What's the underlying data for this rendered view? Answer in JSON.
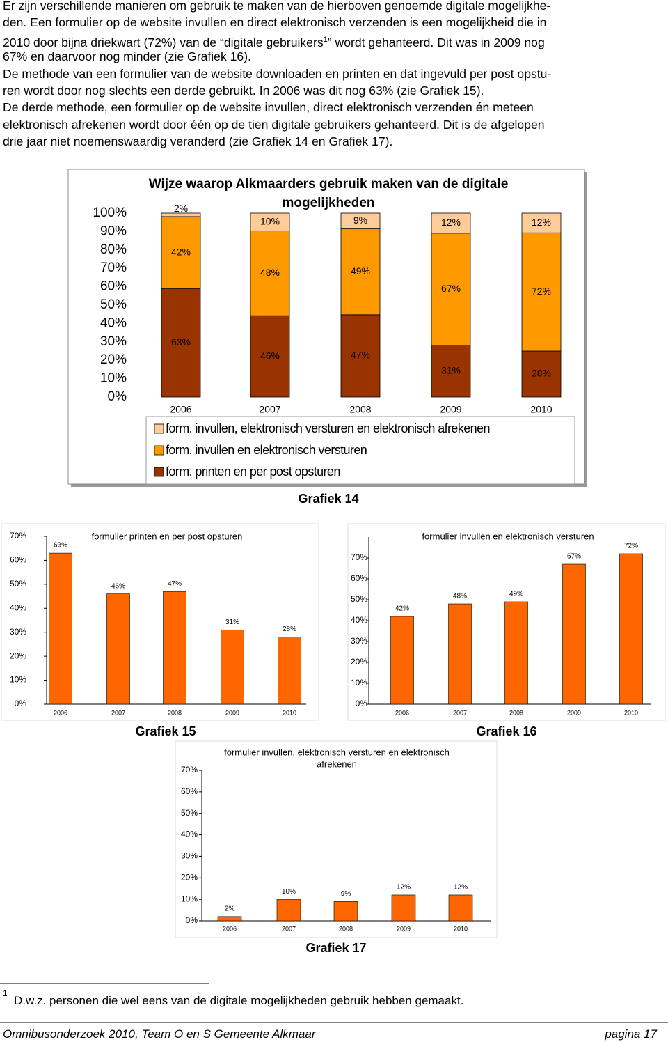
{
  "intro_lines": [
    {
      "text": "Er zijn verschillende manieren om gebruik te maken van de hierboven genoemde digitale mogelijkhe-"
    },
    {
      "text": "den. Een formulier op de website invullen en direct elektronisch verzenden is een mogelijkheid die in"
    },
    {
      "text": "2010 door bijna driekwart (72%) van de “digitale gebruikers",
      "sup": "1",
      "rest": "” wordt gehanteerd. Dit was in 2009 nog"
    },
    {
      "text": "67% en daarvoor nog minder (zie Grafiek 16)."
    },
    {
      "text": "De methode van een formulier van de website downloaden en printen en dat ingevuld per post opstu-"
    },
    {
      "text": "ren wordt door nog slechts een derde gebruikt. In 2006 was dit nog 63% (zie Grafiek 15)."
    },
    {
      "text": "De derde methode, een formulier op de website invullen, direct elektronisch verzenden én meteen"
    },
    {
      "text": "elektronisch afrekenen wordt door één op de tien digitale gebruikers gehanteerd. Dit is de afgelopen"
    },
    {
      "text": "drie jaar niet noemenswaardig veranderd (zie Grafiek 14 en Grafiek 17)."
    }
  ],
  "chart_data": [
    {
      "type": "bar",
      "stacking": "percent",
      "title": [
        "Wijze waarop Alkmaarders gebruik maken van de digitale",
        "mogelijkheden"
      ],
      "caption": "Grafiek 14",
      "categories": [
        "2006",
        "2007",
        "2008",
        "2009",
        "2010"
      ],
      "series": [
        {
          "name": "form. printen en per post opsturen",
          "color": "#993300",
          "values": [
            63,
            46,
            47,
            31,
            28
          ],
          "value_labels": [
            "63%",
            "46%",
            "47%",
            "31%",
            "28%"
          ]
        },
        {
          "name": "form. invullen en elektronisch versturen",
          "color": "#ff9900",
          "values": [
            42,
            48,
            49,
            67,
            72
          ],
          "value_labels": [
            "42%",
            "48%",
            "49%",
            "67%",
            "72%"
          ]
        },
        {
          "name": "form. invullen, elektronisch versturen en elektronisch afrekenen",
          "color": "#ffcc99",
          "values": [
            2,
            10,
            9,
            12,
            12
          ],
          "value_labels": [
            "2%",
            "10%",
            "9%",
            "12%",
            "12%"
          ]
        }
      ],
      "ylim": [
        0,
        100
      ],
      "yticks": [
        {
          "value": 0,
          "label": "0%"
        },
        {
          "value": 10,
          "label": "10%"
        },
        {
          "value": 20,
          "label": "20%"
        },
        {
          "value": 30,
          "label": "30%"
        },
        {
          "value": 40,
          "label": "40%"
        },
        {
          "value": 50,
          "label": "50%"
        },
        {
          "value": 60,
          "label": "60%"
        },
        {
          "value": 70,
          "label": "70%"
        },
        {
          "value": 80,
          "label": "80%"
        },
        {
          "value": 90,
          "label": "90%"
        },
        {
          "value": 100,
          "label": "100%"
        }
      ],
      "legend": "bottom"
    },
    {
      "type": "bar",
      "title": [
        "formulier printen en per post opsturen"
      ],
      "caption": "Grafiek 15",
      "categories": [
        "2006",
        "2007",
        "2008",
        "2009",
        "2010"
      ],
      "values": [
        63,
        46,
        47,
        31,
        28
      ],
      "value_labels": [
        "63%",
        "46%",
        "47%",
        "31%",
        "28%"
      ],
      "color": "#ff6600",
      "ylim": [
        0,
        70
      ],
      "yticks": [
        {
          "value": 0,
          "label": "0%"
        },
        {
          "value": 10,
          "label": "10%"
        },
        {
          "value": 20,
          "label": "20%"
        },
        {
          "value": 30,
          "label": "30%"
        },
        {
          "value": 40,
          "label": "40%"
        },
        {
          "value": 50,
          "label": "50%"
        },
        {
          "value": 60,
          "label": "60%"
        },
        {
          "value": 70,
          "label": "70%"
        }
      ]
    },
    {
      "type": "bar",
      "title": [
        "formulier invullen en elektronisch versturen"
      ],
      "caption": "Grafiek 16",
      "categories": [
        "2006",
        "2007",
        "2008",
        "2009",
        "2010"
      ],
      "values": [
        42,
        48,
        49,
        67,
        72
      ],
      "value_labels": [
        "42%",
        "48%",
        "49%",
        "67%",
        "72%"
      ],
      "color": "#ff6600",
      "ylim": [
        0,
        80
      ],
      "yticks": [
        {
          "value": 0,
          "label": "0%"
        },
        {
          "value": 10,
          "label": "10%"
        },
        {
          "value": 20,
          "label": "20%"
        },
        {
          "value": 30,
          "label": "30%"
        },
        {
          "value": 40,
          "label": "40%"
        },
        {
          "value": 50,
          "label": "50%"
        },
        {
          "value": 60,
          "label": "60%"
        },
        {
          "value": 70,
          "label": "70%"
        }
      ]
    },
    {
      "type": "bar",
      "title": [
        "formulier invullen, elektronisch versturen en elektronisch",
        "afrekenen"
      ],
      "caption": "Grafiek 17",
      "categories": [
        "2006",
        "2007",
        "2008",
        "2009",
        "2010"
      ],
      "values": [
        2,
        10,
        9,
        12,
        12
      ],
      "value_labels": [
        "2%",
        "10%",
        "9%",
        "12%",
        "12%"
      ],
      "color": "#ff6600",
      "ylim": [
        0,
        70
      ],
      "yticks": [
        {
          "value": 0,
          "label": "0%"
        },
        {
          "value": 10,
          "label": "10%"
        },
        {
          "value": 20,
          "label": "20%"
        },
        {
          "value": 30,
          "label": "30%"
        },
        {
          "value": 40,
          "label": "40%"
        },
        {
          "value": 50,
          "label": "50%"
        },
        {
          "value": 60,
          "label": "60%"
        },
        {
          "value": 70,
          "label": "70%"
        }
      ]
    }
  ],
  "footnote": {
    "marker": "1",
    "text": "D.w.z. personen die wel eens van de digitale mogelijkheden gebruik hebben gemaakt."
  },
  "footer": {
    "left": "Omnibusonderzoek 2010, Team O en S Gemeente Alkmaar",
    "right": "pagina 17"
  }
}
